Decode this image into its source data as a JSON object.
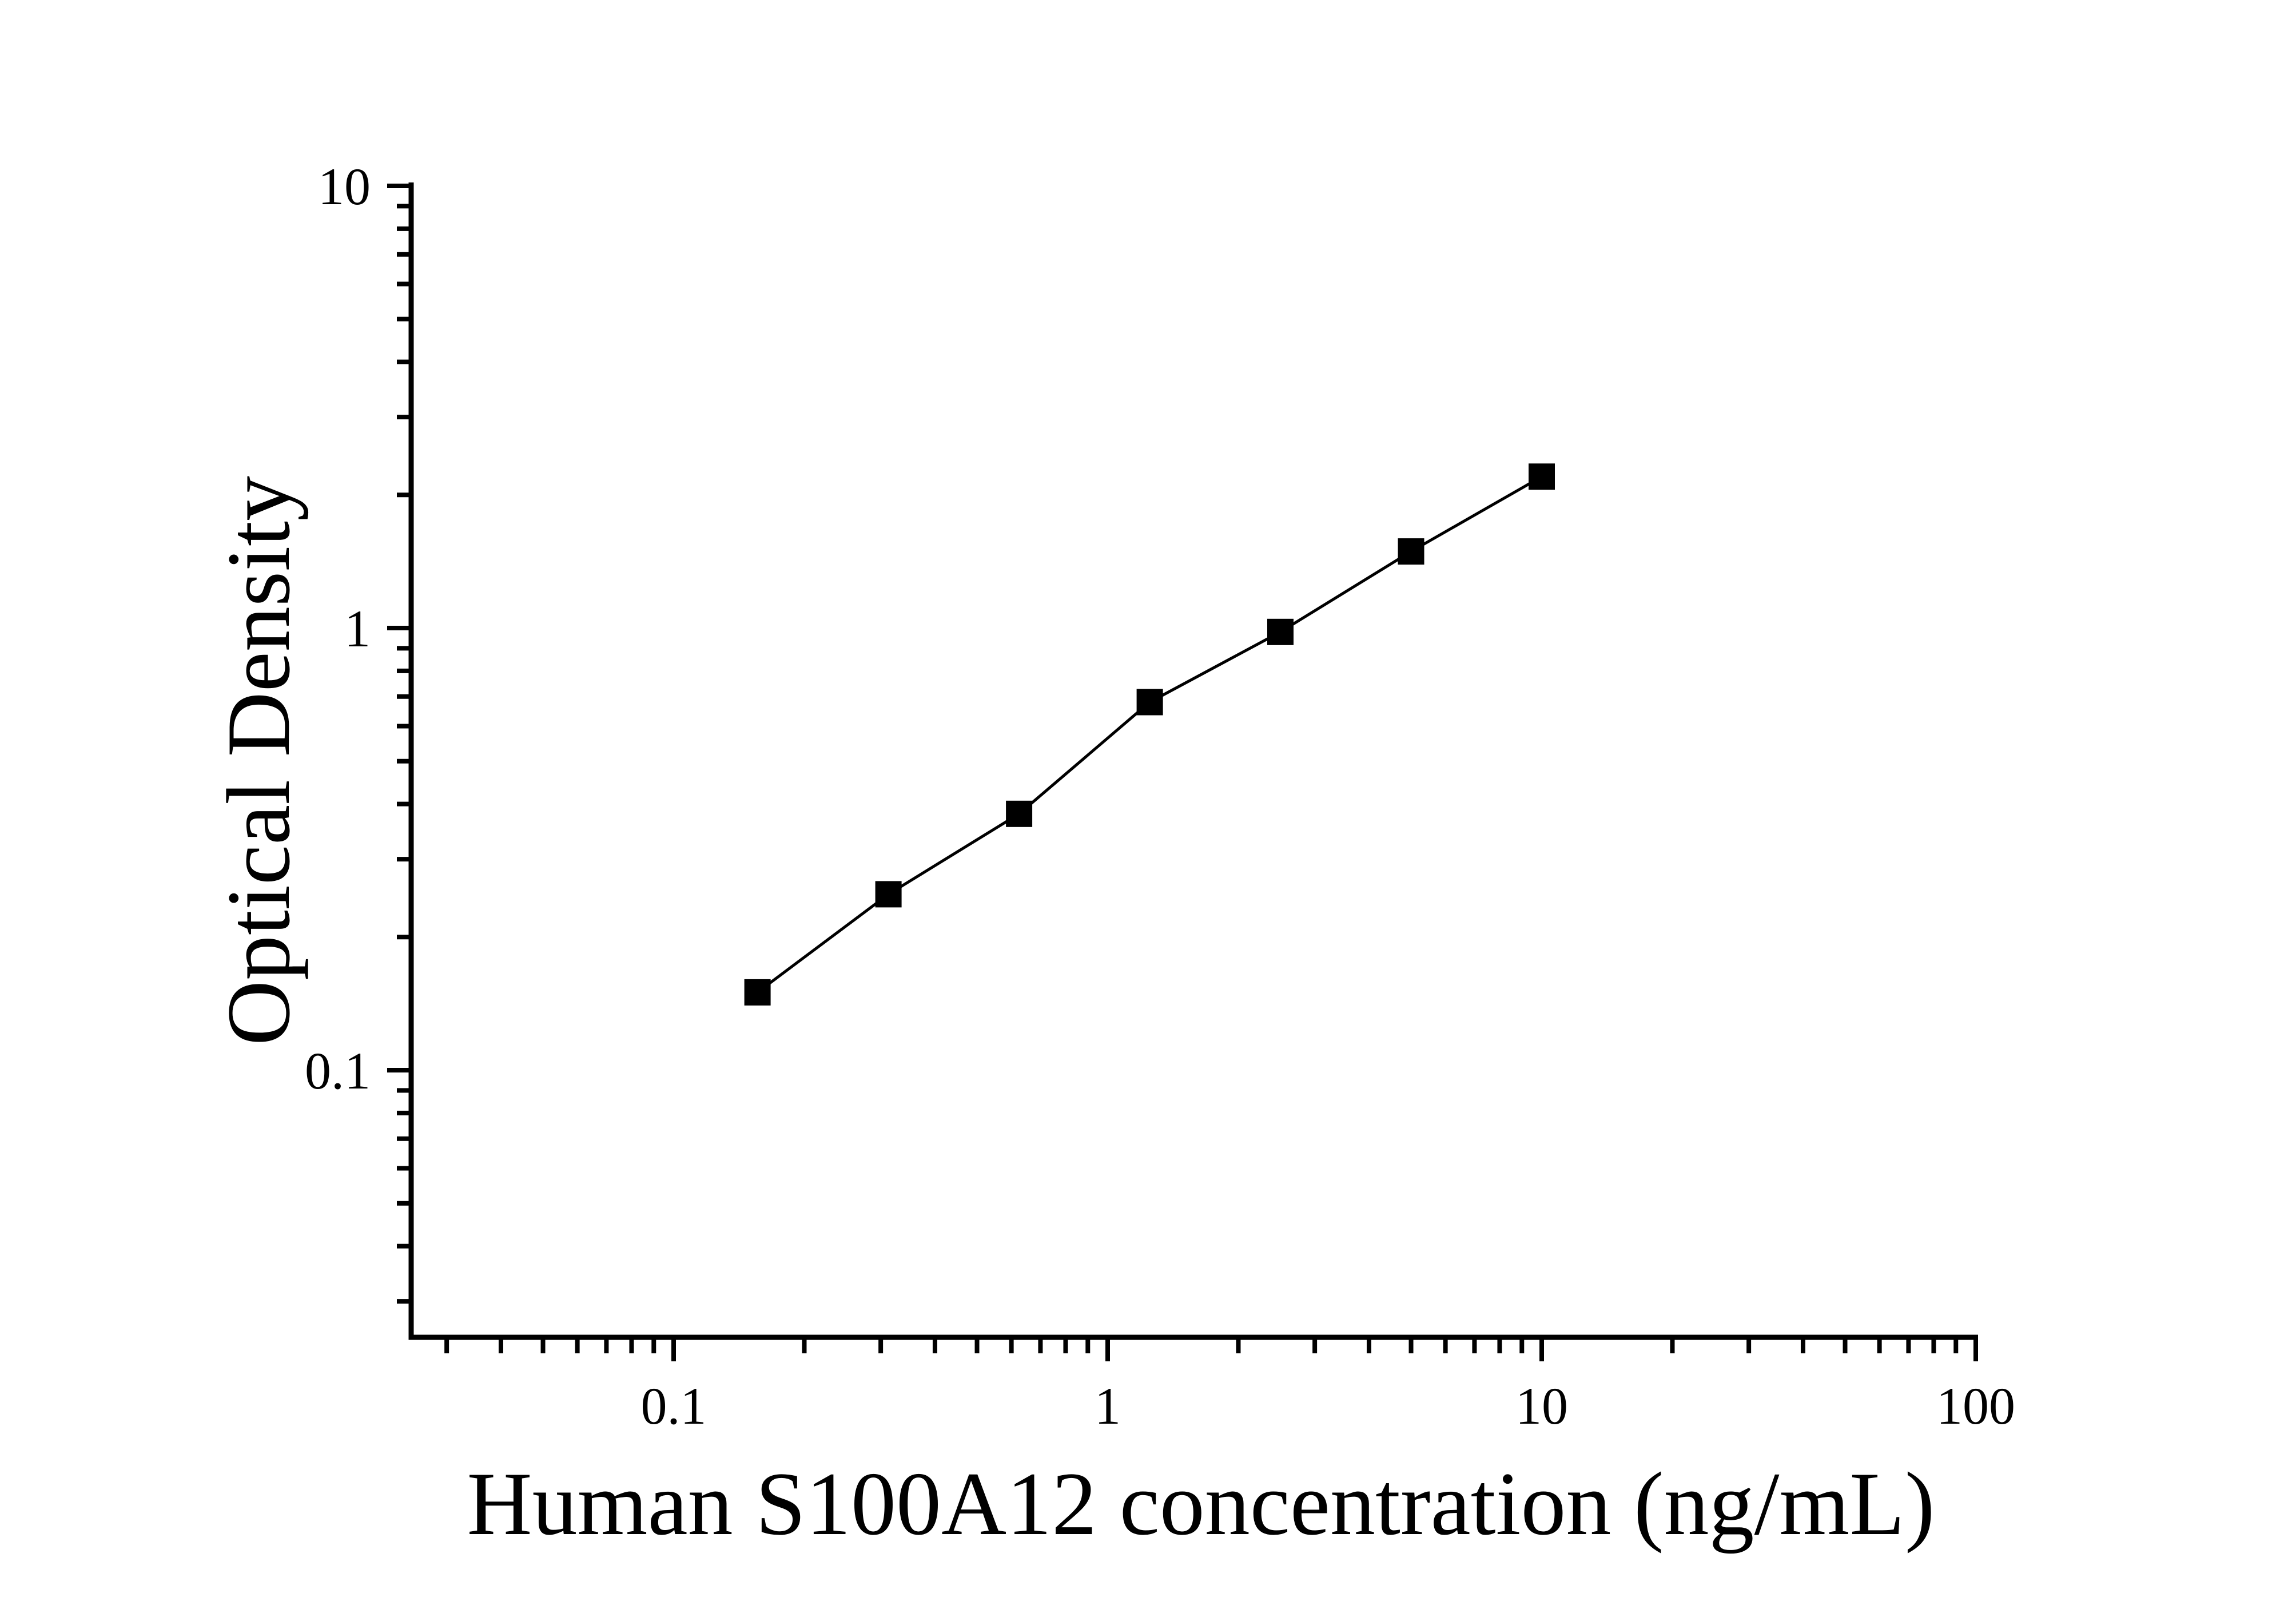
{
  "figure": {
    "background_color": "#ffffff",
    "axis_color": "#000000"
  },
  "chart_data": {
    "type": "line",
    "title": "",
    "xlabel": "Human S100A12 concentration (ng/mL)",
    "ylabel": "Optical Density",
    "x_scale": "log",
    "y_scale": "log",
    "xlim": [
      0.025,
      100
    ],
    "ylim": [
      0.025,
      10
    ],
    "grid": false,
    "legend": "none",
    "x_ticks": [
      {
        "value": 0.1,
        "label": "0.1"
      },
      {
        "value": 1,
        "label": "1"
      },
      {
        "value": 10,
        "label": "10"
      },
      {
        "value": 100,
        "label": "100"
      }
    ],
    "y_ticks": [
      {
        "value": 10,
        "label": "10"
      },
      {
        "value": 1,
        "label": "1"
      },
      {
        "value": 0.1,
        "label": "0.1"
      }
    ],
    "series": [
      {
        "name": "standard-curve",
        "marker": "filled-square",
        "line_color": "#000000",
        "marker_color": "#000000",
        "points": [
          {
            "x": 0.156,
            "y": 0.15
          },
          {
            "x": 0.3125,
            "y": 0.25
          },
          {
            "x": 0.625,
            "y": 0.38
          },
          {
            "x": 1.25,
            "y": 0.68
          },
          {
            "x": 2.5,
            "y": 0.98
          },
          {
            "x": 5,
            "y": 1.49
          },
          {
            "x": 10,
            "y": 2.2
          }
        ]
      }
    ]
  }
}
